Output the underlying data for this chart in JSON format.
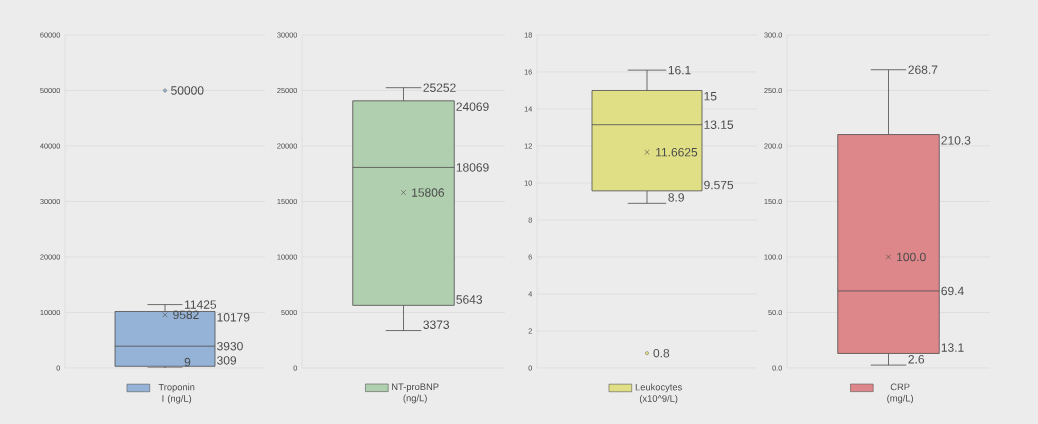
{
  "chart_data": [
    {
      "type": "box",
      "categories": [
        null
      ],
      "series": [
        {
          "name": "Troponin I (ng/L)",
          "color": "#95b3d7",
          "boxes": [
            {
              "low": 9,
              "q1": 309,
              "median": 3930,
              "q3": 10179,
              "high": 11425,
              "mean": 9582,
              "outliers": [
                50000
              ]
            }
          ]
        }
      ],
      "ylim": [
        0,
        60000
      ],
      "yticks": [
        0,
        10000,
        20000,
        30000,
        40000,
        50000,
        60000
      ],
      "grid": "y",
      "legend": "bottom",
      "tick_labels": "y",
      "data_labels": true,
      "annotations": [
        "9",
        "309",
        "3930",
        "9582",
        "10179",
        "11425",
        "50000"
      ]
    },
    {
      "type": "box",
      "categories": [
        null
      ],
      "series": [
        {
          "name": "NT-proBNP (ng/L)",
          "color": "#b0cfae",
          "boxes": [
            {
              "low": 3373,
              "q1": 5643,
              "median": 18069,
              "q3": 24069,
              "high": 25252,
              "mean": 15806
            }
          ]
        }
      ],
      "ylim": [
        0,
        30000
      ],
      "yticks": [
        0,
        5000,
        10000,
        15000,
        20000,
        25000,
        30000
      ],
      "grid": "y",
      "legend": "bottom",
      "tick_labels": "y",
      "data_labels": true,
      "annotations": [
        "3373",
        "5643",
        "15806",
        "18069",
        "24069",
        "25252"
      ]
    },
    {
      "type": "box",
      "categories": [
        null
      ],
      "series": [
        {
          "name": "Leukocytes (x10^9/L)",
          "color": "#e0df86",
          "boxes": [
            {
              "low": 8.9,
              "q1": 9.575,
              "median": 13.15,
              "q3": 15,
              "high": 16.1,
              "mean": 11.6625,
              "outliers": [
                0.8
              ]
            }
          ]
        }
      ],
      "ylim": [
        0,
        18
      ],
      "yticks": [
        0,
        2,
        4,
        6,
        8,
        10,
        12,
        14,
        16,
        18
      ],
      "grid": "y",
      "legend": "bottom",
      "tick_labels": "y",
      "data_labels": true,
      "annotations": [
        "0.8",
        "8.9",
        "9.575",
        "11.6625",
        "13.15",
        "15",
        "16.1"
      ]
    },
    {
      "type": "box",
      "categories": [
        null
      ],
      "series": [
        {
          "name": "CRP (mg/L)",
          "color": "#de878a",
          "boxes": [
            {
              "low": 2.6,
              "q1": 13.1,
              "median": 69.4,
              "q3": 210.3,
              "high": 268.7,
              "mean": 100
            }
          ]
        }
      ],
      "ylim": [
        0,
        300
      ],
      "yticks": [
        {
          "value": 0,
          "label": "0.0"
        },
        {
          "value": 50,
          "label": "50.0"
        },
        {
          "value": 100,
          "label": "100.0"
        },
        {
          "value": 150,
          "label": "150.0"
        },
        {
          "value": 200,
          "label": "200.0"
        },
        {
          "value": 250,
          "label": "250.0"
        },
        {
          "value": 300,
          "label": "300.0"
        }
      ],
      "grid": "y",
      "legend": "bottom",
      "tick_labels": "y",
      "data_labels": true,
      "annotations": [
        "2.6",
        "13.1",
        "69.4",
        "100.0",
        "210.3",
        "268.7"
      ]
    }
  ]
}
